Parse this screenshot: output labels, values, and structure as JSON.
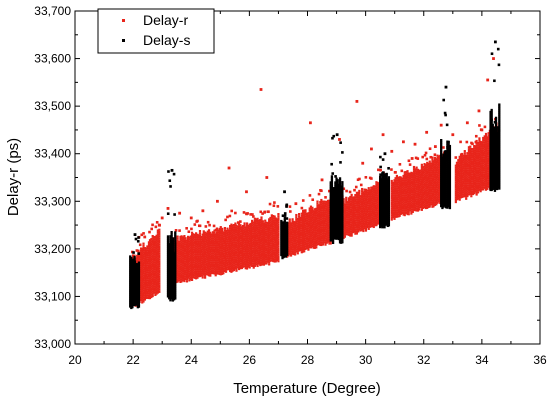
{
  "chart_data": {
    "type": "scatter",
    "title": "",
    "xlabel": "Temperature (Degree)",
    "ylabel": "Delay-r (ps)",
    "xlim": [
      20,
      36
    ],
    "ylim": [
      33000,
      33700
    ],
    "xticks": [
      "20",
      "22",
      "24",
      "26",
      "28",
      "30",
      "32",
      "34",
      "36"
    ],
    "yticks": [
      "33,000",
      "33,100",
      "33,200",
      "33,300",
      "33,400",
      "33,500",
      "33,600",
      "33,700"
    ],
    "grid": false,
    "legend_position": "top-left",
    "series": [
      {
        "name": "Delay-r",
        "color": "#e8251b",
        "marker": "square",
        "segments": [
          {
            "x_range": [
              22.0,
              22.9
            ],
            "low": [
              33080,
              33110
            ],
            "high": [
              33180,
              33240
            ]
          },
          {
            "x_range": [
              23.4,
              27.0
            ],
            "low": [
              33130,
              33175
            ],
            "high": [
              33220,
              33270
            ]
          },
          {
            "x_range": [
              27.3,
              28.8
            ],
            "low": [
              33185,
              33215
            ],
            "high": [
              33255,
              33310
            ]
          },
          {
            "x_range": [
              29.2,
              30.6
            ],
            "low": [
              33225,
              33255
            ],
            "high": [
              33300,
              33345
            ]
          },
          {
            "x_range": [
              30.9,
              32.7
            ],
            "low": [
              33265,
              33300
            ],
            "high": [
              33345,
              33400
            ]
          },
          {
            "x_range": [
              33.1,
              34.5
            ],
            "low": [
              33300,
              33335
            ],
            "high": [
              33385,
              33460
            ]
          }
        ],
        "outliers": [
          [
            22.4,
            33225
          ],
          [
            22.7,
            33215
          ],
          [
            22.9,
            33250
          ],
          [
            23.0,
            33265
          ],
          [
            23.2,
            33285
          ],
          [
            23.6,
            33275
          ],
          [
            24.0,
            33265
          ],
          [
            24.4,
            33280
          ],
          [
            24.9,
            33300
          ],
          [
            25.3,
            33370
          ],
          [
            25.9,
            33320
          ],
          [
            26.4,
            33535
          ],
          [
            26.6,
            33350
          ],
          [
            27.6,
            33295
          ],
          [
            28.1,
            33465
          ],
          [
            28.5,
            33345
          ],
          [
            29.1,
            33430
          ],
          [
            29.7,
            33510
          ],
          [
            29.9,
            33380
          ],
          [
            30.2,
            33410
          ],
          [
            30.6,
            33440
          ],
          [
            30.9,
            33405
          ],
          [
            31.3,
            33425
          ],
          [
            31.7,
            33420
          ],
          [
            32.1,
            33445
          ],
          [
            32.6,
            33460
          ],
          [
            33.0,
            33440
          ],
          [
            33.5,
            33465
          ],
          [
            33.9,
            33490
          ],
          [
            34.2,
            33555
          ],
          [
            34.4,
            33600
          ],
          [
            34.0,
            33450
          ],
          [
            31.6,
            33390
          ],
          [
            32.4,
            33415
          ]
        ]
      },
      {
        "name": "Delay-s",
        "color": "#000000",
        "marker": "square",
        "columns": [
          {
            "x_range": [
              21.9,
              22.2
            ],
            "low": [
              33075,
              33085
            ],
            "high": [
              33165,
              33230
            ]
          },
          {
            "x_range": [
              23.2,
              23.45
            ],
            "low": [
              33088,
              33102
            ],
            "high": [
              33175,
              33365
            ]
          },
          {
            "x_range": [
              27.1,
              27.3
            ],
            "low": [
              33180,
              33190
            ],
            "high": [
              33250,
              33320
            ]
          },
          {
            "x_range": [
              28.8,
              29.2
            ],
            "low": [
              33212,
              33225
            ],
            "high": [
              33320,
              33440
            ]
          },
          {
            "x_range": [
              30.5,
              30.8
            ],
            "low": [
              33245,
              33255
            ],
            "high": [
              33345,
              33400
            ]
          },
          {
            "x_range": [
              32.6,
              32.9
            ],
            "low": [
              33285,
              33292
            ],
            "high": [
              33385,
              33540
            ]
          },
          {
            "x_range": [
              34.3,
              34.6
            ],
            "low": [
              33322,
              33330
            ],
            "high": [
              33440,
              33635
            ]
          }
        ]
      }
    ]
  }
}
